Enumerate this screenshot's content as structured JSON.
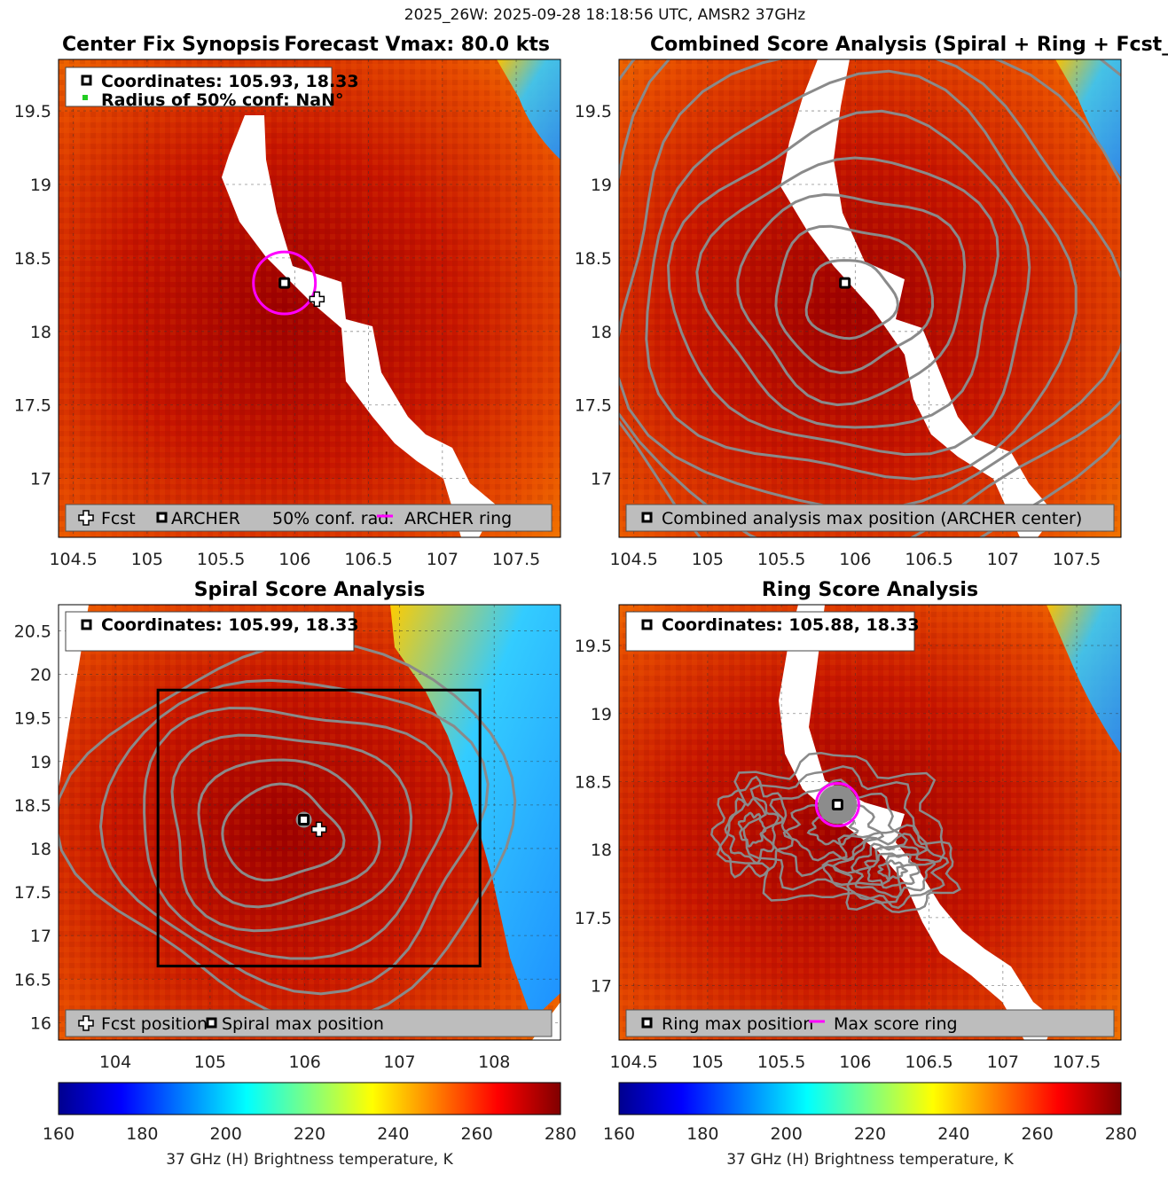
{
  "figure": {
    "suptitle": "2025_26W: 2025-09-28 18:18:56 UTC, AMSR2 37GHz"
  },
  "chart_data": [
    {
      "type": "heatmap",
      "panel": "center_fix",
      "title_left": "Center Fix Synopsis",
      "title_right": "Forecast Vmax: 80.0 kts",
      "xlim": [
        104.4,
        107.8
      ],
      "ylim": [
        16.6,
        19.85
      ],
      "xticks": [
        104.5,
        105,
        105.5,
        106,
        106.5,
        107,
        107.5
      ],
      "yticks": [
        17,
        17.5,
        18,
        18.5,
        19,
        19.5
      ],
      "archer_center": [
        105.93,
        18.33
      ],
      "forecast_position": [
        106.15,
        18.22
      ],
      "ring_radius_deg": 0.21,
      "info_lines": [
        "Coordinates: 105.93, 18.33",
        "Radius of 50% conf: NaN°"
      ],
      "legend": [
        "Fcst",
        "ARCHER",
        "50% conf. rad.",
        "ARCHER ring"
      ]
    },
    {
      "type": "heatmap",
      "panel": "combined",
      "title": "Combined Score Analysis (Spiral + Ring + Fcst_Pe",
      "xlim": [
        104.4,
        107.8
      ],
      "ylim": [
        16.6,
        19.85
      ],
      "xticks": [
        104.5,
        105,
        105.5,
        106,
        106.5,
        107,
        107.5
      ],
      "yticks": [
        17,
        17.5,
        18,
        18.5,
        19,
        19.5
      ],
      "max_position": [
        105.93,
        18.33
      ],
      "contour_center": [
        105.95,
        18.2
      ],
      "legend": [
        "Combined analysis max position (ARCHER center)"
      ]
    },
    {
      "type": "heatmap",
      "panel": "spiral",
      "title": "Spiral Score Analysis",
      "xlim": [
        103.4,
        108.7
      ],
      "ylim": [
        15.8,
        20.8
      ],
      "xticks": [
        104,
        105,
        106,
        107,
        108
      ],
      "yticks": [
        16,
        16.5,
        17,
        17.5,
        18,
        18.5,
        19,
        19.5,
        20,
        20.5
      ],
      "max_position": [
        105.99,
        18.33
      ],
      "forecast_position": [
        106.15,
        18.22
      ],
      "search_box": [
        104.45,
        16.65,
        107.85,
        19.82
      ],
      "info_lines": [
        "Coordinates: 105.99, 18.33"
      ],
      "legend": [
        "Fcst position",
        "Spiral max position"
      ]
    },
    {
      "type": "heatmap",
      "panel": "ring",
      "title": "Ring Score Analysis",
      "xlim": [
        104.4,
        107.8
      ],
      "ylim": [
        16.6,
        19.8
      ],
      "xticks": [
        104.5,
        105,
        105.5,
        106,
        106.5,
        107,
        107.5
      ],
      "yticks": [
        17,
        17.5,
        18,
        18.5,
        19,
        19.5
      ],
      "max_position": [
        105.88,
        18.33
      ],
      "info_lines": [
        "Coordinates: 105.88, 18.33"
      ],
      "legend": [
        "Ring max position",
        "Max score ring"
      ]
    },
    {
      "type": "colorbar",
      "label": "37 GHz (H) Brightness temperature, K",
      "range": [
        160,
        280
      ],
      "ticks": [
        160,
        180,
        200,
        220,
        240,
        260,
        280
      ]
    }
  ],
  "colors": {
    "colormap": [
      "#00008f",
      "#0000ff",
      "#00ffff",
      "#ffff00",
      "#ff0000",
      "#800000"
    ],
    "field_deep": "#a30000",
    "field_mid": "#d62a00",
    "field_bright": "#f07a00",
    "cold_edge": "#2aa6ff",
    "contour": "#8a8a8a",
    "ring": "#ff00ff",
    "legend_bg": "#bdbdbd",
    "grid": "#333333"
  }
}
